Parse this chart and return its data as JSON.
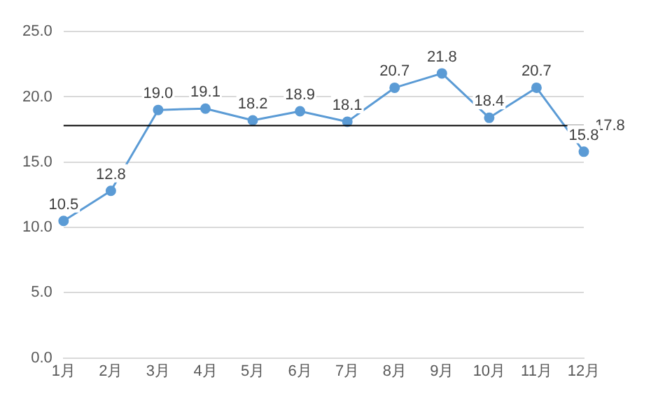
{
  "chart_data": {
    "type": "line",
    "categories": [
      "1月",
      "2月",
      "3月",
      "4月",
      "5月",
      "6月",
      "7月",
      "8月",
      "9月",
      "10月",
      "11月",
      "12月"
    ],
    "series": [
      {
        "color": "#5b9bd5",
        "values": [
          10.5,
          12.8,
          19.0,
          19.1,
          18.2,
          18.9,
          18.1,
          20.7,
          21.8,
          18.4,
          20.7,
          15.8
        ],
        "value_labels": [
          "10.5",
          "12.8",
          "19.0",
          "19.1",
          "18.2",
          "18.9",
          "18.1",
          "20.7",
          "21.8",
          "18.4",
          "20.7",
          "15.8"
        ]
      }
    ],
    "ylim": [
      0,
      25
    ],
    "yticks": [
      {
        "value": 0,
        "label": "0.0"
      },
      {
        "value": 5,
        "label": "5.0"
      },
      {
        "value": 10,
        "label": "10.0"
      },
      {
        "value": 15,
        "label": "15.0"
      },
      {
        "value": 20,
        "label": "20.0"
      },
      {
        "value": 25,
        "label": "25.0"
      }
    ],
    "ref_lines": [
      {
        "axis": "y",
        "value": 17.8,
        "label": "17.8",
        "color": "#000000"
      }
    ],
    "grid": "y",
    "marker": "circle",
    "line_style": "solid",
    "legend": false
  }
}
